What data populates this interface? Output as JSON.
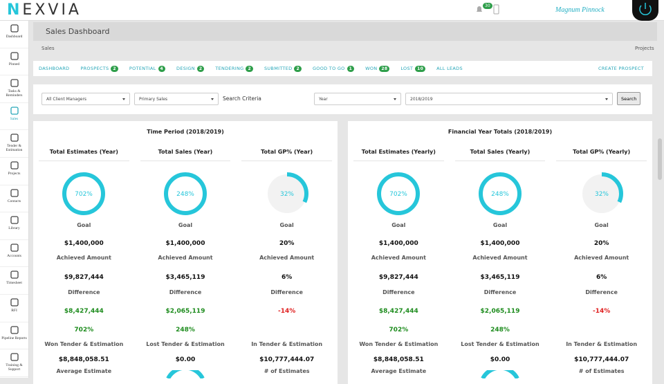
{
  "header": {
    "logo": "NEXVIA",
    "notification_count": "30",
    "user": "Magnum Pinnock"
  },
  "sidebar": [
    "Dashboard",
    "Pinned",
    "Tasks & Reminders",
    "Sales",
    "Tender & Estimation",
    "Projects",
    "Contacts",
    "Library",
    "Accounts",
    "Timesheet",
    "RFI",
    "Pipeline Reports",
    "Training & Support"
  ],
  "sidebar_active": 3,
  "page_title": "Sales Dashboard",
  "breadcrumb": "Sales",
  "projects_link": "Projects",
  "tabs": [
    {
      "label": "DASHBOARD"
    },
    {
      "label": "PROSPECTS",
      "count": 2
    },
    {
      "label": "POTENTIAL",
      "count": 4
    },
    {
      "label": "DESIGN",
      "count": 2
    },
    {
      "label": "TENDERING",
      "count": 2
    },
    {
      "label": "SUBMITTED",
      "count": 2
    },
    {
      "label": "GOOD TO GO",
      "count": 1
    },
    {
      "label": "WON",
      "count": 28
    },
    {
      "label": "LOST",
      "count": 10
    },
    {
      "label": "ALL LEADS"
    }
  ],
  "create_button": "CREATE PROSPECT",
  "filters": {
    "client_manager": "All Client Managers",
    "sales_type": "Primary Sales",
    "criteria_label": "Search Criteria",
    "period_type": "Year",
    "period": "2018/2019",
    "button": "Search"
  },
  "ring_color": "#26c6da",
  "positive_color": "#1e8c1e",
  "negative_color": "#e02020",
  "panels": [
    {
      "title": "Time Period (2018/2019)",
      "columns": [
        {
          "title": "Total Estimates (Year)",
          "ring": {
            "value": 702,
            "label": "702%"
          },
          "goal_label": "Goal",
          "goal": "$1,400,000",
          "achieved_label": "Achieved Amount",
          "achieved": "$9,827,444",
          "difference_label": "Difference",
          "difference": "$8,427,444",
          "difference_color": "#1e8c1e",
          "percent": "702%",
          "tender_label": "Won Tender & Estimation",
          "tender_value": "$8,848,058.51",
          "bottom_label": "Average Estimate"
        },
        {
          "title": "Total Sales (Year)",
          "ring": {
            "value": 248,
            "label": "248%"
          },
          "goal_label": "Goal",
          "goal": "$1,400,000",
          "achieved_label": "Achieved Amount",
          "achieved": "$3,465,119",
          "difference_label": "Difference",
          "difference": "$2,065,119",
          "difference_color": "#1e8c1e",
          "percent": "248%",
          "tender_label": "Lost Tender & Estimation",
          "tender_value": "$0.00"
        },
        {
          "title": "Total GP% (Year)",
          "ring": {
            "value": 32,
            "label": "32%"
          },
          "goal_label": "Goal",
          "goal": "20%",
          "achieved_label": "Achieved Amount",
          "achieved": "6%",
          "difference_label": "Difference",
          "difference": "-14%",
          "difference_color": "#e02020",
          "tender_label": "In Tender & Estimation",
          "tender_value": "$10,777,444.07",
          "bottom_label": "# of Estimates"
        }
      ]
    },
    {
      "title": "Financial Year Totals (2018/2019)",
      "columns": [
        {
          "title": "Total Estimates (Yearly)",
          "ring": {
            "value": 702,
            "label": "702%"
          },
          "goal_label": "Goal",
          "goal": "$1,400,000",
          "achieved_label": "Achieved Amount",
          "achieved": "$9,827,444",
          "difference_label": "Difference",
          "difference": "$8,427,444",
          "difference_color": "#1e8c1e",
          "percent": "702%",
          "tender_label": "Won Tender & Estimation",
          "tender_value": "$8,848,058.51",
          "bottom_label": "Average Estimate"
        },
        {
          "title": "Total Sales (Yearly)",
          "ring": {
            "value": 248,
            "label": "248%"
          },
          "goal_label": "Goal",
          "goal": "$1,400,000",
          "achieved_label": "Achieved Amount",
          "achieved": "$3,465,119",
          "difference_label": "Difference",
          "difference": "$2,065,119",
          "difference_color": "#1e8c1e",
          "percent": "248%",
          "tender_label": "Lost Tender & Estimation",
          "tender_value": "$0.00"
        },
        {
          "title": "Total GP% (Yearly)",
          "ring": {
            "value": 32,
            "label": "32%"
          },
          "goal_label": "Goal",
          "goal": "20%",
          "achieved_label": "Achieved Amount",
          "achieved": "6%",
          "difference_label": "Difference",
          "difference": "-14%",
          "difference_color": "#e02020",
          "tender_label": "In Tender & Estimation",
          "tender_value": "$10,777,444.07",
          "bottom_label": "# of Estimates"
        }
      ]
    }
  ]
}
